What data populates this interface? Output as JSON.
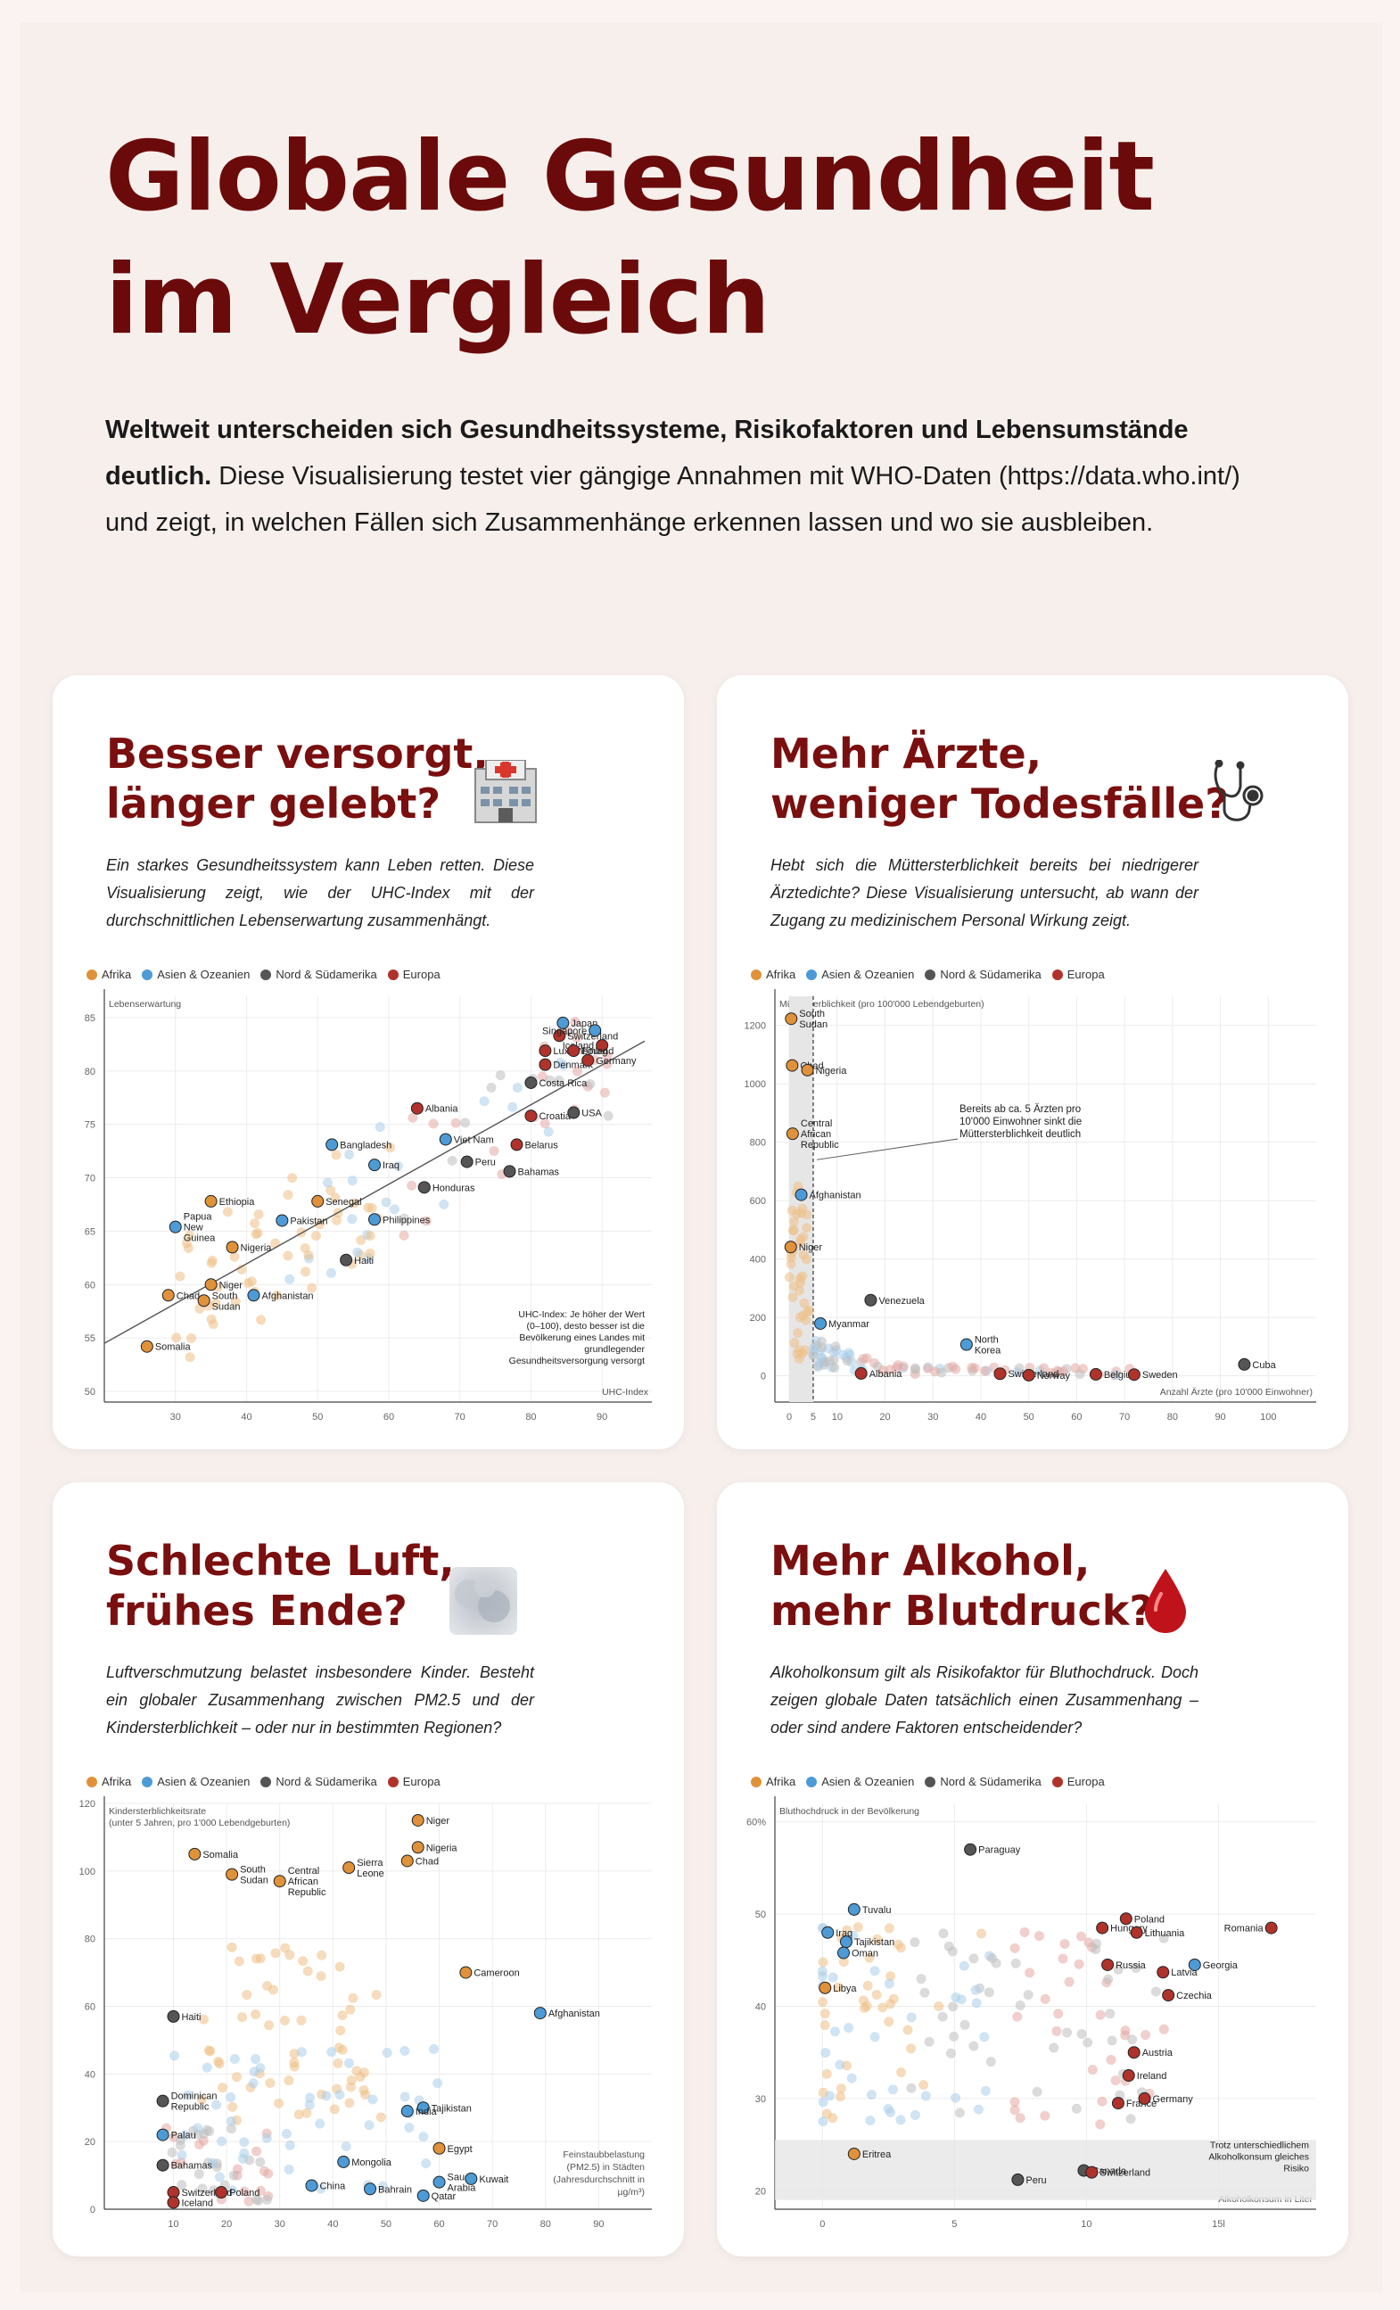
{
  "header": {
    "title": "Globale Gesundheit im Vergleich",
    "intro_bold": "Weltweit unterscheiden sich Gesundheitssysteme, Risikofaktoren und Lebensumstände deutlich.",
    "intro_rest": " Diese Visualisierung testet vier gängige Annahmen mit WHO-Daten (https://data.who.int/) und zeigt, in welchen Fällen sich Zusammenhänge erkennen lassen und wo sie ausbleiben."
  },
  "legend": [
    {
      "label": "Afrika",
      "color": "#e0923a"
    },
    {
      "label": "Asien & Ozeanien",
      "color": "#4d9bd6"
    },
    {
      "label": "Nord & Südamerika",
      "color": "#555555"
    },
    {
      "label": "Europa",
      "color": "#b0332b"
    }
  ],
  "cards": [
    {
      "title": "Besser versorgt,\nlänger gelebt?",
      "desc": "Ein starkes Gesundheitssystem kann Leben retten. Diese Visualisierung zeigt, wie der UHC-Index mit der durchschnittlichen Lebenserwartung zusammenhängt.",
      "icon": "hospital-icon"
    },
    {
      "title": "Mehr Ärzte,\nweniger Todesfälle?",
      "desc": "Hebt sich die Müttersterblichkeit bereits bei niedrigerer Ärztedichte? Diese Visualisierung untersucht, ab wann der Zugang zu medizinischem Personal Wirkung zeigt.",
      "icon": "stethoscope-icon"
    },
    {
      "title": "Schlechte Luft,\nfrühes Ende?",
      "desc": "Luftverschmutzung belastet insbesondere Kinder. Besteht ein globaler Zusammenhang zwischen PM2.5 und der Kindersterblichkeit – oder nur in bestimmten Regionen?",
      "icon": "smog-icon"
    },
    {
      "title": "Mehr Alkohol,\nmehr Blutdruck?",
      "desc": "Alkoholkonsum gilt als Risikofaktor für Bluthochdruck. Doch zeigen globale Daten tatsächlich einen Zusammenhang – oder sind andere Faktoren entscheidender?",
      "icon": "blood-drop-icon"
    }
  ],
  "chart_data": [
    {
      "type": "scatter",
      "ylabel": "Lebenserwartung",
      "xlabel": "UHC-Index",
      "xticks": [
        30,
        40,
        50,
        60,
        70,
        80,
        90
      ],
      "yticks": [
        50,
        55,
        60,
        65,
        70,
        75,
        80,
        85
      ],
      "xlim": [
        20,
        97
      ],
      "ylim": [
        49,
        87
      ],
      "trendline": [
        [
          20,
          54.5
        ],
        [
          96,
          82.8
        ]
      ],
      "annotation": "UHC-Index: Je höher der Wert (0–100), desto besser ist die Bevölkerung eines Landes mit grundlegender Gesundheitsversorgung versorgt",
      "labeled_points": [
        {
          "name": "Somalia",
          "region": 0,
          "x": 26,
          "y": 54.2
        },
        {
          "name": "Chad",
          "region": 0,
          "x": 29,
          "y": 59
        },
        {
          "name": "South Sudan",
          "region": 0,
          "x": 34,
          "y": 58.5
        },
        {
          "name": "Niger",
          "region": 0,
          "x": 35,
          "y": 60
        },
        {
          "name": "Afghanistan",
          "region": 1,
          "x": 41,
          "y": 59
        },
        {
          "name": "Papua New Guinea",
          "region": 1,
          "x": 30,
          "y": 65.4
        },
        {
          "name": "Ethiopia",
          "region": 0,
          "x": 35,
          "y": 67.8
        },
        {
          "name": "Nigeria",
          "region": 0,
          "x": 38,
          "y": 63.5
        },
        {
          "name": "Pakistan",
          "region": 1,
          "x": 45,
          "y": 66
        },
        {
          "name": "Senegal",
          "region": 0,
          "x": 50,
          "y": 67.8
        },
        {
          "name": "Haiti",
          "region": 2,
          "x": 54,
          "y": 62.3
        },
        {
          "name": "Bangladesh",
          "region": 1,
          "x": 52,
          "y": 73.1
        },
        {
          "name": "Iraq",
          "region": 1,
          "x": 58,
          "y": 71.2
        },
        {
          "name": "Philippines",
          "region": 1,
          "x": 58,
          "y": 66.1
        },
        {
          "name": "Albania",
          "region": 3,
          "x": 64,
          "y": 76.5
        },
        {
          "name": "Honduras",
          "region": 2,
          "x": 65,
          "y": 69.1
        },
        {
          "name": "Viet Nam",
          "region": 1,
          "x": 68,
          "y": 73.6
        },
        {
          "name": "Peru",
          "region": 2,
          "x": 71,
          "y": 71.5
        },
        {
          "name": "Bahamas",
          "region": 2,
          "x": 77,
          "y": 70.6
        },
        {
          "name": "Belarus",
          "region": 3,
          "x": 78,
          "y": 73.1
        },
        {
          "name": "Croatia",
          "region": 3,
          "x": 80,
          "y": 75.8
        },
        {
          "name": "Costa Rica",
          "region": 2,
          "x": 80,
          "y": 78.9
        },
        {
          "name": "Denmark",
          "region": 3,
          "x": 82,
          "y": 80.6
        },
        {
          "name": "USA",
          "region": 2,
          "x": 86,
          "y": 76.1
        },
        {
          "name": "Luxembourg",
          "region": 3,
          "x": 82,
          "y": 81.9
        },
        {
          "name": "Switzerland",
          "region": 3,
          "x": 84,
          "y": 83.3
        },
        {
          "name": "Japan",
          "region": 1,
          "x": 84.5,
          "y": 84.5
        },
        {
          "name": "Singapore",
          "region": 1,
          "x": 89,
          "y": 83.8
        },
        {
          "name": "Iceland",
          "region": 3,
          "x": 90,
          "y": 82.4
        },
        {
          "name": "Finland",
          "region": 3,
          "x": 86,
          "y": 81.9
        },
        {
          "name": "Germany",
          "region": 3,
          "x": 88,
          "y": 81
        }
      ]
    },
    {
      "type": "scatter",
      "ylabel": "Müttersterblichkeit (pro 100'000 Lebendgeburten)",
      "xlabel": "Anzahl Ärzte (pro 10'000 Einwohner)",
      "xticks": [
        0,
        5,
        10,
        20,
        30,
        40,
        50,
        60,
        70,
        80,
        90,
        100
      ],
      "yticks": [
        0,
        200,
        400,
        600,
        800,
        1000,
        1200
      ],
      "xlim": [
        -3,
        110
      ],
      "ylim": [
        -90,
        1300
      ],
      "threshold_x": 5,
      "annotation": "Bereits ab ca. 5 Ärzten pro 10'000 Einwohner sinkt die Müttersterblichkeit deutlich",
      "labeled_points": [
        {
          "name": "South Sudan",
          "region": 0,
          "x": 0.4,
          "y": 1223
        },
        {
          "name": "Chad",
          "region": 0,
          "x": 0.6,
          "y": 1063
        },
        {
          "name": "Nigeria",
          "region": 0,
          "x": 3.8,
          "y": 1047
        },
        {
          "name": "Central African Republic",
          "region": 0,
          "x": 0.7,
          "y": 829
        },
        {
          "name": "Afghanistan",
          "region": 1,
          "x": 2.5,
          "y": 620
        },
        {
          "name": "Niger",
          "region": 0,
          "x": 0.3,
          "y": 441
        },
        {
          "name": "Venezuela",
          "region": 2,
          "x": 17,
          "y": 259
        },
        {
          "name": "Myanmar",
          "region": 1,
          "x": 6.5,
          "y": 179
        },
        {
          "name": "North Korea",
          "region": 1,
          "x": 37,
          "y": 107
        },
        {
          "name": "Switzerland",
          "region": 3,
          "x": 44,
          "y": 7
        },
        {
          "name": "Albania",
          "region": 3,
          "x": 15,
          "y": 8
        },
        {
          "name": "Norway",
          "region": 3,
          "x": 50,
          "y": 2
        },
        {
          "name": "Belgium",
          "region": 3,
          "x": 64,
          "y": 5
        },
        {
          "name": "Sweden",
          "region": 3,
          "x": 72,
          "y": 4
        },
        {
          "name": "Cuba",
          "region": 2,
          "x": 95,
          "y": 39
        }
      ]
    },
    {
      "type": "scatter",
      "ylabel": "Kindersterblichkeitsrate (unter 5 Jahren, pro 1'000 Lebendgeburten)",
      "xlabel": "Feinstaubbelastung (PM2.5) in Städten (Jahresdurchschnitt in µg/m³)",
      "xticks": [
        10,
        20,
        30,
        40,
        50,
        60,
        70,
        80,
        90
      ],
      "yticks": [
        0,
        20,
        40,
        60,
        80,
        100,
        120
      ],
      "xlim": [
        -3,
        100
      ],
      "ylim": [
        0,
        120
      ],
      "labeled_points": [
        {
          "name": "Niger",
          "region": 0,
          "x": 56,
          "y": 115
        },
        {
          "name": "Somalia",
          "region": 0,
          "x": 14,
          "y": 105
        },
        {
          "name": "South Sudan",
          "region": 0,
          "x": 21,
          "y": 99
        },
        {
          "name": "Central African Republic",
          "region": 0,
          "x": 30,
          "y": 97
        },
        {
          "name": "Sierra Leone",
          "region": 0,
          "x": 43,
          "y": 101
        },
        {
          "name": "Nigeria",
          "region": 0,
          "x": 56,
          "y": 107
        },
        {
          "name": "Chad",
          "region": 0,
          "x": 54,
          "y": 103
        },
        {
          "name": "Cameroon",
          "region": 0,
          "x": 65,
          "y": 70
        },
        {
          "name": "Afghanistan",
          "region": 1,
          "x": 79,
          "y": 58
        },
        {
          "name": "Haiti",
          "region": 2,
          "x": 10,
          "y": 57
        },
        {
          "name": "Dominican Republic",
          "region": 2,
          "x": 8,
          "y": 32
        },
        {
          "name": "Palau",
          "region": 1,
          "x": 8,
          "y": 22
        },
        {
          "name": "Tajikistan",
          "region": 1,
          "x": 57,
          "y": 30
        },
        {
          "name": "India",
          "region": 1,
          "x": 54,
          "y": 29
        },
        {
          "name": "Egypt",
          "region": 0,
          "x": 60,
          "y": 18
        },
        {
          "name": "Mongolia",
          "region": 1,
          "x": 42,
          "y": 14
        },
        {
          "name": "Bahamas",
          "region": 2,
          "x": 8,
          "y": 13
        },
        {
          "name": "Switzerland",
          "region": 3,
          "x": 10,
          "y": 5
        },
        {
          "name": "Poland",
          "region": 3,
          "x": 19,
          "y": 5
        },
        {
          "name": "Iceland",
          "region": 3,
          "x": 10,
          "y": 2
        },
        {
          "name": "China",
          "region": 1,
          "x": 36,
          "y": 7
        },
        {
          "name": "Bahrain",
          "region": 1,
          "x": 47,
          "y": 6
        },
        {
          "name": "Qatar",
          "region": 1,
          "x": 57,
          "y": 4
        },
        {
          "name": "Saudi Arabia",
          "region": 1,
          "x": 60,
          "y": 8
        },
        {
          "name": "Kuwait",
          "region": 1,
          "x": 66,
          "y": 9
        }
      ]
    },
    {
      "type": "scatter",
      "ylabel": "Bluthochdruck in der Bevölkerung",
      "xlabel": "Alkoholkonsum in Liter",
      "xticks": [
        0,
        5,
        10,
        15
      ],
      "xticklabels": [
        "0",
        "5",
        "10",
        "15l"
      ],
      "yticks": [
        20,
        30,
        40,
        50,
        60
      ],
      "yticklabels": [
        "20",
        "30",
        "40",
        "50",
        "60%"
      ],
      "xlim": [
        -1.8,
        18.7
      ],
      "ylim": [
        18,
        62
      ],
      "annotation": "Trotz unterschiedlichem Alkoholkonsum gleiches Risiko",
      "band": [
        19,
        25.5
      ],
      "labeled_points": [
        {
          "name": "Paraguay",
          "region": 2,
          "x": 5.6,
          "y": 57
        },
        {
          "name": "Tuvalu",
          "region": 1,
          "x": 1.2,
          "y": 50.5
        },
        {
          "name": "Iraq",
          "region": 1,
          "x": 0.2,
          "y": 48
        },
        {
          "name": "Tajikistan",
          "region": 1,
          "x": 0.9,
          "y": 47
        },
        {
          "name": "Oman",
          "region": 1,
          "x": 0.8,
          "y": 45.8
        },
        {
          "name": "Libya",
          "region": 0,
          "x": 0.1,
          "y": 42
        },
        {
          "name": "Poland",
          "region": 3,
          "x": 11.5,
          "y": 49.5
        },
        {
          "name": "Hungary",
          "region": 3,
          "x": 10.6,
          "y": 48.5
        },
        {
          "name": "Lithuania",
          "region": 3,
          "x": 11.9,
          "y": 48
        },
        {
          "name": "Romania",
          "region": 3,
          "x": 17,
          "y": 48.5
        },
        {
          "name": "Latvia",
          "region": 3,
          "x": 12.9,
          "y": 43.7
        },
        {
          "name": "Georgia",
          "region": 1,
          "x": 14.1,
          "y": 44.5
        },
        {
          "name": "Russia",
          "region": 3,
          "x": 10.8,
          "y": 44.5
        },
        {
          "name": "Czechia",
          "region": 3,
          "x": 13.1,
          "y": 41.2
        },
        {
          "name": "Austria",
          "region": 3,
          "x": 11.8,
          "y": 35
        },
        {
          "name": "Ireland",
          "region": 3,
          "x": 11.6,
          "y": 32.5
        },
        {
          "name": "France",
          "region": 3,
          "x": 11.2,
          "y": 29.5
        },
        {
          "name": "Germany",
          "region": 3,
          "x": 12.2,
          "y": 30
        },
        {
          "name": "Eritrea",
          "region": 0,
          "x": 1.2,
          "y": 24
        },
        {
          "name": "Peru",
          "region": 2,
          "x": 7.4,
          "y": 21.2
        },
        {
          "name": "Canada",
          "region": 2,
          "x": 9.9,
          "y": 22.2
        },
        {
          "name": "Switzerland",
          "region": 3,
          "x": 10.2,
          "y": 22
        }
      ]
    }
  ]
}
